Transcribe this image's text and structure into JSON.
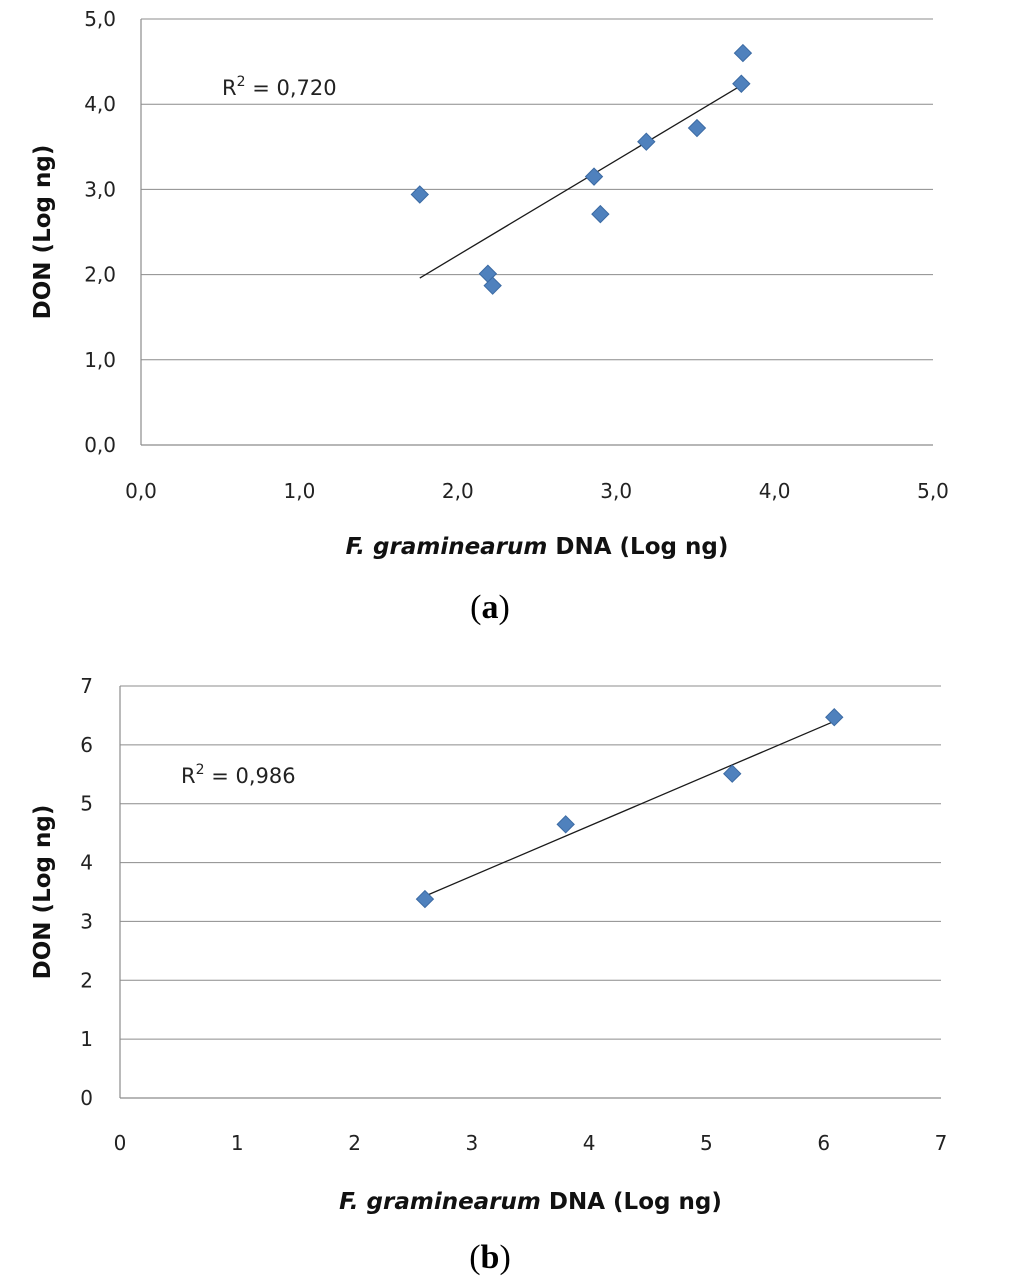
{
  "chart_data": [
    {
      "type": "scatter",
      "panel_label": "a",
      "panel_open": "(",
      "panel_close": ")",
      "xlabel_italic": "F. graminearum",
      "xlabel_rest": " DNA (Log ng)",
      "ylabel": "DON (Log ng)",
      "xlim": [
        0,
        5
      ],
      "ylim": [
        0,
        5
      ],
      "x_ticks": [
        0,
        1,
        2,
        3,
        4,
        5
      ],
      "x_tick_labels": [
        "0,0",
        "1,0",
        "2,0",
        "3,0",
        "4,0",
        "5,0"
      ],
      "y_ticks": [
        0,
        1,
        2,
        3,
        4,
        5
      ],
      "y_tick_labels": [
        "0,0",
        "1,0",
        "2,0",
        "3,0",
        "4,0",
        "5,0"
      ],
      "grid": "horizontal",
      "points": [
        {
          "x": 1.76,
          "y": 2.94
        },
        {
          "x": 2.19,
          "y": 2.01
        },
        {
          "x": 2.22,
          "y": 1.87
        },
        {
          "x": 2.86,
          "y": 3.15
        },
        {
          "x": 2.9,
          "y": 2.71
        },
        {
          "x": 3.19,
          "y": 3.56
        },
        {
          "x": 3.51,
          "y": 3.72
        },
        {
          "x": 3.79,
          "y": 4.24
        },
        {
          "x": 3.8,
          "y": 4.6
        }
      ],
      "trendline": {
        "x1": 1.76,
        "y1": 1.96,
        "x2": 3.78,
        "y2": 4.21
      },
      "r2_prefix": "R",
      "r2_sup": "2",
      "r2_text": " = 0,720",
      "marker_color": "#4F81BD"
    },
    {
      "type": "scatter",
      "panel_label": "b",
      "panel_open": "(",
      "panel_close": ")",
      "xlabel_italic": "F. graminearum",
      "xlabel_rest": " DNA (Log ng)",
      "ylabel": "DON (Log ng)",
      "xlim": [
        0,
        7
      ],
      "ylim": [
        0,
        7
      ],
      "x_ticks": [
        0,
        1,
        2,
        3,
        4,
        5,
        6,
        7
      ],
      "x_tick_labels": [
        "0",
        "1",
        "2",
        "3",
        "4",
        "5",
        "6",
        "7"
      ],
      "y_ticks": [
        0,
        1,
        2,
        3,
        4,
        5,
        6,
        7
      ],
      "y_tick_labels": [
        "0",
        "1",
        "2",
        "3",
        "4",
        "5",
        "6",
        "7"
      ],
      "grid": "horizontal",
      "points": [
        {
          "x": 2.6,
          "y": 3.38
        },
        {
          "x": 3.8,
          "y": 4.65
        },
        {
          "x": 5.22,
          "y": 5.51
        },
        {
          "x": 6.09,
          "y": 6.47
        }
      ],
      "trendline": {
        "x1": 2.6,
        "y1": 3.43,
        "x2": 6.09,
        "y2": 6.4
      },
      "r2_prefix": "R",
      "r2_sup": "2",
      "r2_text": " = 0,986",
      "marker_color": "#4F81BD"
    }
  ]
}
